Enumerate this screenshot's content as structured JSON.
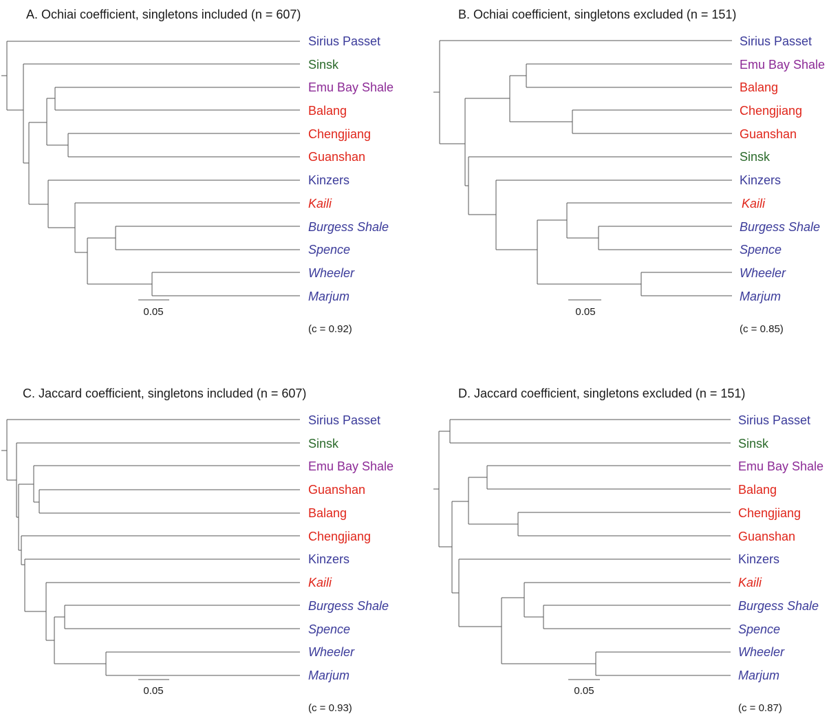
{
  "colors": {
    "blue_group": "#3b3b9a",
    "green_group": "#2b6a2b",
    "purple_group": "#8c2a96",
    "red_group": "#e0261b",
    "branch": "#555555"
  },
  "panels": [
    {
      "id": "A",
      "title": "A. Ochiai coefficient, singletons included (n = 607)",
      "scale_label": "0.05",
      "cophenetic": "(c = 0.92)",
      "leaves": [
        {
          "label": "Sirius Passet",
          "group": "blue_group",
          "italic": false
        },
        {
          "label": "Sinsk",
          "group": "green_group",
          "italic": false
        },
        {
          "label": "Emu Bay Shale",
          "group": "purple_group",
          "italic": false
        },
        {
          "label": "Balang",
          "group": "red_group",
          "italic": false
        },
        {
          "label": "Chengjiang",
          "group": "red_group",
          "italic": false
        },
        {
          "label": "Guanshan",
          "group": "red_group",
          "italic": false
        },
        {
          "label": "Kinzers",
          "group": "blue_group",
          "italic": false
        },
        {
          "label": "Kaili",
          "group": "red_group",
          "italic": true
        },
        {
          "label": "Burgess Shale",
          "group": "blue_group",
          "italic": true
        },
        {
          "label": "Spence",
          "group": "blue_group",
          "italic": true
        },
        {
          "label": "Wheeler",
          "group": "blue_group",
          "italic": true
        },
        {
          "label": "Marjum",
          "group": "blue_group",
          "italic": true
        }
      ]
    },
    {
      "id": "B",
      "title": "B. Ochiai coefficient, singletons excluded (n = 151)",
      "scale_label": "0.05",
      "cophenetic": "(c = 0.85)",
      "leaves": [
        {
          "label": "Sirius Passet",
          "group": "blue_group",
          "italic": false
        },
        {
          "label": "Emu Bay Shale",
          "group": "purple_group",
          "italic": false
        },
        {
          "label": "Balang",
          "group": "red_group",
          "italic": false
        },
        {
          "label": "Chengjiang",
          "group": "red_group",
          "italic": false
        },
        {
          "label": "Guanshan",
          "group": "red_group",
          "italic": false
        },
        {
          "label": "Sinsk",
          "group": "green_group",
          "italic": false
        },
        {
          "label": "Kinzers",
          "group": "blue_group",
          "italic": false
        },
        {
          "label": "Kaili",
          "group": "red_group",
          "italic": true
        },
        {
          "label": "Burgess Shale",
          "group": "blue_group",
          "italic": true
        },
        {
          "label": "Spence",
          "group": "blue_group",
          "italic": true
        },
        {
          "label": "Wheeler",
          "group": "blue_group",
          "italic": true
        },
        {
          "label": "Marjum",
          "group": "blue_group",
          "italic": true
        }
      ]
    },
    {
      "id": "C",
      "title": "C. Jaccard coefficient, singletons included (n = 607)",
      "scale_label": "0.05",
      "cophenetic": "(c = 0.93)",
      "leaves": [
        {
          "label": "Sirius Passet",
          "group": "blue_group",
          "italic": false
        },
        {
          "label": "Sinsk",
          "group": "green_group",
          "italic": false
        },
        {
          "label": "Emu Bay Shale",
          "group": "purple_group",
          "italic": false
        },
        {
          "label": "Guanshan",
          "group": "red_group",
          "italic": false
        },
        {
          "label": "Balang",
          "group": "red_group",
          "italic": false
        },
        {
          "label": "Chengjiang",
          "group": "red_group",
          "italic": false
        },
        {
          "label": "Kinzers",
          "group": "blue_group",
          "italic": false
        },
        {
          "label": "Kaili",
          "group": "red_group",
          "italic": true
        },
        {
          "label": "Burgess Shale",
          "group": "blue_group",
          "italic": true
        },
        {
          "label": "Spence",
          "group": "blue_group",
          "italic": true
        },
        {
          "label": "Wheeler",
          "group": "blue_group",
          "italic": true
        },
        {
          "label": "Marjum",
          "group": "blue_group",
          "italic": true
        }
      ]
    },
    {
      "id": "D",
      "title": "D. Jaccard coefficient, singletons excluded (n = 151)",
      "scale_label": "0.05",
      "cophenetic": "(c = 0.87)",
      "leaves": [
        {
          "label": "Sirius Passet",
          "group": "blue_group",
          "italic": false
        },
        {
          "label": "Sinsk",
          "group": "green_group",
          "italic": false
        },
        {
          "label": "Emu Bay Shale",
          "group": "purple_group",
          "italic": false
        },
        {
          "label": "Balang",
          "group": "red_group",
          "italic": false
        },
        {
          "label": "Chengjiang",
          "group": "red_group",
          "italic": false
        },
        {
          "label": "Guanshan",
          "group": "red_group",
          "italic": false
        },
        {
          "label": "Kinzers",
          "group": "blue_group",
          "italic": false
        },
        {
          "label": "Kaili",
          "group": "red_group",
          "italic": true
        },
        {
          "label": "Burgess Shale",
          "group": "blue_group",
          "italic": true
        },
        {
          "label": "Spence",
          "group": "blue_group",
          "italic": true
        },
        {
          "label": "Wheeler",
          "group": "blue_group",
          "italic": true
        },
        {
          "label": "Marjum",
          "group": "blue_group",
          "italic": true
        }
      ]
    }
  ]
}
